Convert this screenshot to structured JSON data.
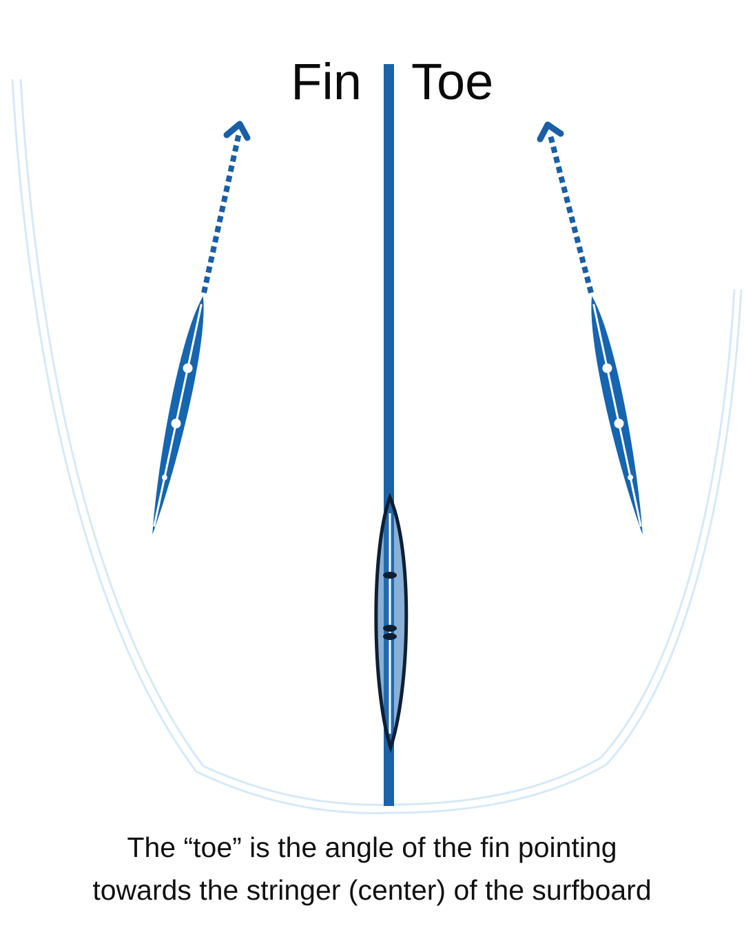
{
  "title": {
    "left": "Fin",
    "right": "Toe"
  },
  "caption": {
    "line1": "The “toe” is the angle of the fin pointing",
    "line2": "towards the stringer (center) of the surfboard"
  },
  "colors": {
    "fin_blue": "#1565b0",
    "stringer_blue": "#1a63a8",
    "outline_light": "#d6e9f7",
    "center_fin_outline": "#0f1f33",
    "text": "#0a0a0a"
  },
  "icons": {
    "left_arrow": "dotted-arrow-up-icon",
    "right_arrow": "dotted-arrow-up-icon"
  }
}
